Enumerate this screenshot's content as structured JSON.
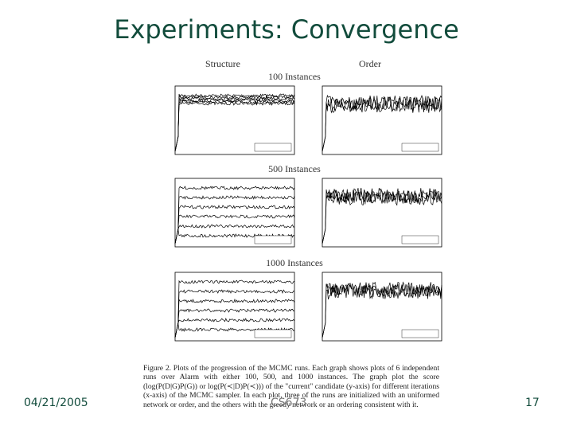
{
  "header": {
    "title": "Experiments: Convergence"
  },
  "figure": {
    "column_labels": [
      "Structure",
      "Order"
    ],
    "row_labels": [
      "100 Instances",
      "500 Instances",
      "1000 Instances"
    ],
    "caption": "Figure 2. Plots of the progression of the MCMC runs. Each graph shows plots of 6 independent runs over Alarm with either 100, 500, and 1000 instances. The graph plot the score (log(P(D|G)P(G)) or log(P(≺|D)P(≺))) of the \"current\" candidate (y-axis) for different iterations (x-axis) of the MCMC sampler. In each plot, three of the runs are initialized with an uniformed network or order, and the others with the greedy network or an ordering consistent with it."
  },
  "footer": {
    "date": "04/21/2005",
    "course": "CS673",
    "page": "17"
  }
}
